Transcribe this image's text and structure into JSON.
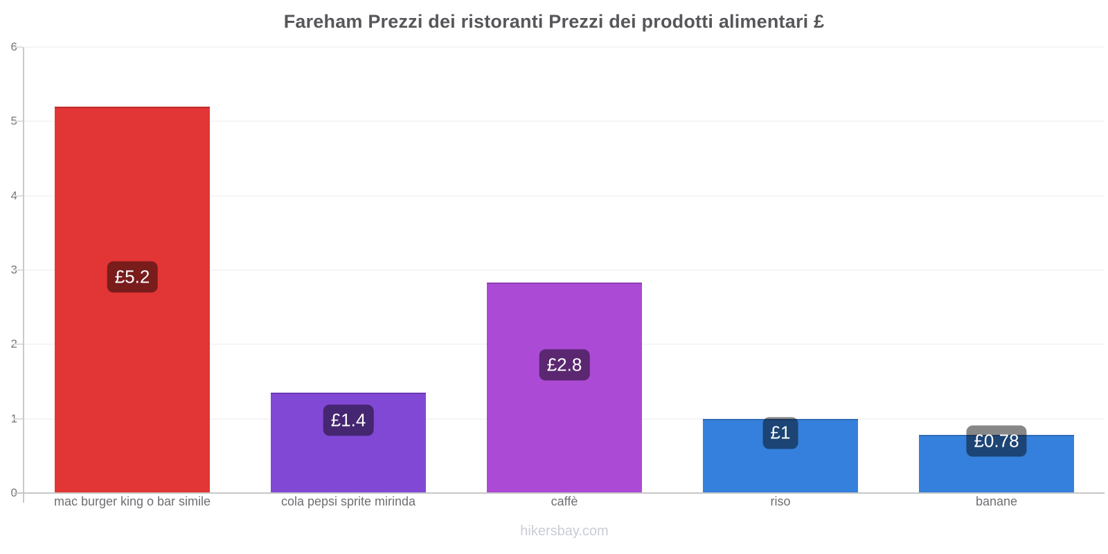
{
  "footer": {
    "label": "hikersbay.com"
  },
  "chart_data": {
    "type": "bar",
    "title": "Fareham Prezzi dei ristoranti Prezzi dei prodotti alimentari £",
    "currency": "£",
    "categories": [
      "mac burger king o bar simile",
      "cola pepsi sprite mirinda",
      "caffè",
      "riso",
      "banane"
    ],
    "values": [
      5.2,
      1.35,
      2.83,
      1.0,
      0.78
    ],
    "value_labels": [
      "£5.2",
      "£1.4",
      "£2.8",
      "£1",
      "£0.78"
    ],
    "bar_colors": [
      "#e23535",
      "#8148d6",
      "#ab4ad4",
      "#3580dc",
      "#3580dc"
    ],
    "badge_bg": "rgba(0,0,0,0.47)",
    "badge_text_color": "#ffffff",
    "ylim": [
      0,
      6
    ],
    "y_ticks": [
      0,
      1,
      2,
      3,
      4,
      5,
      6
    ],
    "grid": "horizontal",
    "legend": "none",
    "axis_color": "#c9c9c9",
    "gridline_color": "#f5f5f5"
  }
}
